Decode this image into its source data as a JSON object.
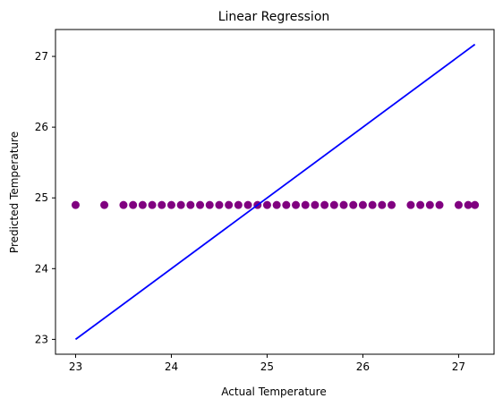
{
  "chart_data": {
    "type": "scatter",
    "title": "Linear Regression",
    "xlabel": "Actual Temperature",
    "ylabel": "Predicted Temperature",
    "xlim": [
      22.79,
      27.37
    ],
    "ylim": [
      22.79,
      27.38
    ],
    "xticks": [
      23,
      24,
      25,
      26,
      27
    ],
    "yticks": [
      23,
      24,
      25,
      26,
      27
    ],
    "grid": false,
    "points_color": "#800080",
    "line_color": "#0000ff",
    "series": [
      {
        "kind": "scatter",
        "x": [
          23.0,
          23.3,
          23.5,
          23.6,
          23.7,
          23.8,
          23.9,
          24.0,
          24.1,
          24.2,
          24.3,
          24.4,
          24.5,
          24.6,
          24.7,
          24.8,
          24.9,
          25.0,
          25.1,
          25.2,
          25.3,
          25.4,
          25.5,
          25.6,
          25.7,
          25.8,
          25.9,
          26.0,
          26.1,
          26.2,
          26.3,
          26.5,
          26.6,
          26.7,
          26.8,
          27.0,
          27.1,
          27.17
        ],
        "y": [
          24.9,
          24.9,
          24.9,
          24.9,
          24.9,
          24.9,
          24.9,
          24.9,
          24.9,
          24.9,
          24.9,
          24.9,
          24.9,
          24.9,
          24.9,
          24.9,
          24.9,
          24.9,
          24.9,
          24.9,
          24.9,
          24.9,
          24.9,
          24.9,
          24.9,
          24.9,
          24.9,
          24.9,
          24.9,
          24.9,
          24.9,
          24.9,
          24.9,
          24.9,
          24.9,
          24.9,
          24.9,
          24.9
        ]
      },
      {
        "kind": "line",
        "x": [
          23.0,
          27.17
        ],
        "y": [
          23.0,
          27.17
        ]
      }
    ]
  }
}
